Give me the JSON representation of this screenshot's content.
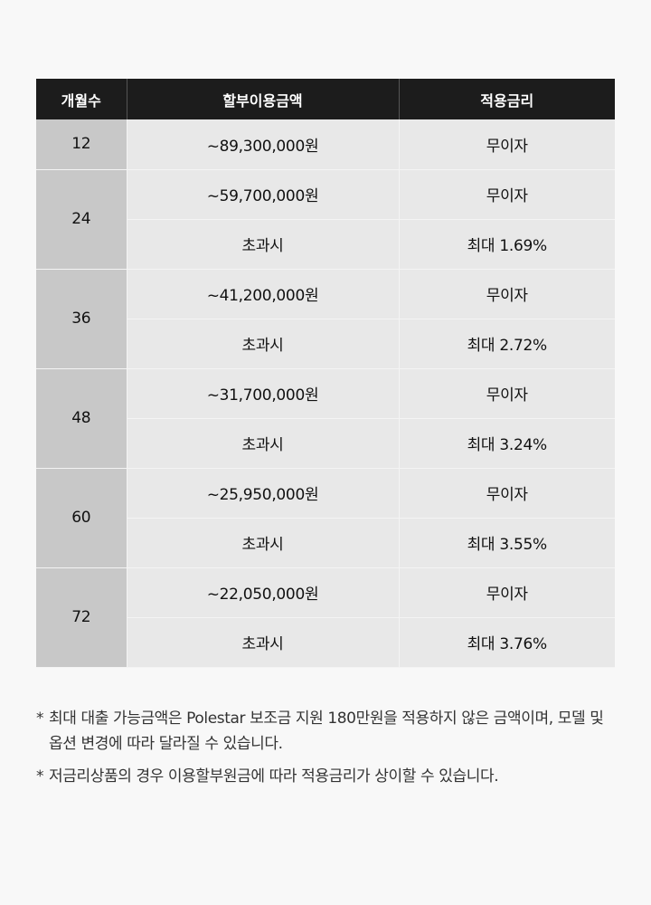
{
  "table": {
    "headers": [
      "개월수",
      "할부이용금액",
      "적용금리"
    ],
    "rows": [
      {
        "months": "12",
        "items": [
          {
            "amount": "~89,300,000원",
            "rate": "무이자"
          }
        ]
      },
      {
        "months": "24",
        "items": [
          {
            "amount": "~59,700,000원",
            "rate": "무이자"
          },
          {
            "amount": "초과시",
            "rate": "최대 1.69%"
          }
        ]
      },
      {
        "months": "36",
        "items": [
          {
            "amount": "~41,200,000원",
            "rate": "무이자"
          },
          {
            "amount": "초과시",
            "rate": "최대 2.72%"
          }
        ]
      },
      {
        "months": "48",
        "items": [
          {
            "amount": "~31,700,000원",
            "rate": "무이자"
          },
          {
            "amount": "초과시",
            "rate": "최대 3.24%"
          }
        ]
      },
      {
        "months": "60",
        "items": [
          {
            "amount": "~25,950,000원",
            "rate": "무이자"
          },
          {
            "amount": "초과시",
            "rate": "최대 3.55%"
          }
        ]
      },
      {
        "months": "72",
        "items": [
          {
            "amount": "~22,050,000원",
            "rate": "무이자"
          },
          {
            "amount": "초과시",
            "rate": "최대 3.76%"
          }
        ]
      }
    ]
  },
  "notes": [
    "최대 대출 가능금액은 Polestar 보조금 지원 180만원을 적용하지 않은 금액이며, 모델 및 옵션 변경에 따라 달라질 수 있습니다.",
    "저금리상품의 경우 이용할부원금에 따라 적용금리가 상이할 수 있습니다."
  ],
  "note_marker": "*"
}
